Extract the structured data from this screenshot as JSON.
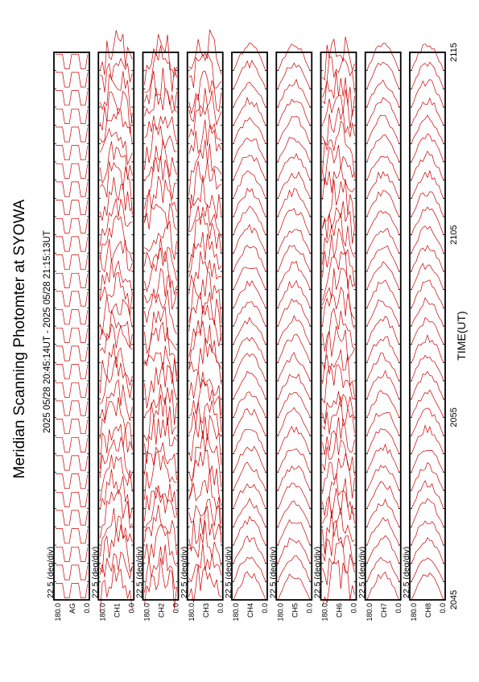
{
  "title": "Meridian Scanning Photomter at SYOWA",
  "time_range": "2025 05/28 20:45:14UT - 2025 05/28 21:15:13UT",
  "xlabel": "TIME(UT)",
  "x_ticks": [
    "2045",
    "2055",
    "2105",
    "2115"
  ],
  "scale_label": "22.5 (deg/div)",
  "y_tick_labels": [
    "180.0",
    "0.0"
  ],
  "colors": {
    "trace": "#cc0000",
    "frame": "#000000",
    "background": "#ffffff"
  },
  "chart_data": {
    "type": "line",
    "title": "Meridian Scanning Photomter at SYOWA",
    "xlabel": "TIME(UT)",
    "x_ticks": [
      "2045",
      "2055",
      "2105",
      "2115"
    ],
    "ylabel_scale": "22.5 (deg/div)",
    "ylim": [
      0.0,
      180.0
    ],
    "panels": [
      {
        "channel": "AG",
        "label": "AG",
        "shape": "square",
        "traces": 30
      },
      {
        "channel": "CH1",
        "label": "CH1",
        "shape": "wavy",
        "traces": 30
      },
      {
        "channel": "CH2",
        "label": "CH2",
        "shape": "wavy",
        "traces": 30
      },
      {
        "channel": "CH3",
        "label": "CH3",
        "shape": "wavy",
        "traces": 30
      },
      {
        "channel": "CH4",
        "label": "CH4",
        "shape": "smooth",
        "traces": 30
      },
      {
        "channel": "CH5",
        "label": "CH5",
        "shape": "smooth",
        "traces": 30
      },
      {
        "channel": "CH6",
        "label": "CH6",
        "shape": "wavy",
        "traces": 30
      },
      {
        "channel": "CH7",
        "label": "CH7",
        "shape": "smooth",
        "traces": 30
      },
      {
        "channel": "CH8",
        "label": "CH8",
        "shape": "smooth",
        "traces": 30
      }
    ]
  }
}
